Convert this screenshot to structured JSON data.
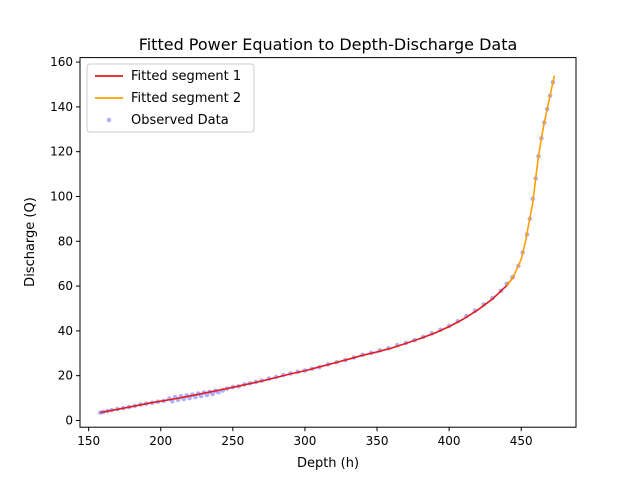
{
  "chart_data": {
    "type": "scatter",
    "title": "Fitted Power Equation to Depth-Discharge Data",
    "xlabel": "Depth (h)",
    "ylabel": "Discharge (Q)",
    "xlim": [
      144,
      488
    ],
    "ylim": [
      -3,
      162
    ],
    "xticks": [
      150,
      200,
      250,
      300,
      350,
      400,
      450
    ],
    "yticks": [
      0,
      20,
      40,
      60,
      80,
      100,
      120,
      140,
      160
    ],
    "grid": false,
    "legend_position": "top-left",
    "legend": [
      {
        "label": "Fitted segment 1",
        "kind": "line",
        "color": "#e41a1c"
      },
      {
        "label": "Fitted segment 2",
        "kind": "line",
        "color": "#ff9f00"
      },
      {
        "label": "Observed Data",
        "kind": "marker",
        "color": "#6f6ff5"
      }
    ],
    "series": [
      {
        "name": "Fitted segment 1",
        "kind": "line",
        "color": "#e41a1c",
        "x": [
          158,
          170,
          180,
          190,
          200,
          210,
          220,
          230,
          240,
          250,
          260,
          270,
          280,
          290,
          300,
          310,
          320,
          330,
          340,
          350,
          360,
          370,
          380,
          390,
          400,
          410,
          420,
          430,
          440,
          445
        ],
        "y": [
          3.5,
          5.0,
          6.2,
          7.5,
          8.6,
          9.7,
          10.9,
          12.2,
          13.5,
          14.8,
          16.2,
          17.6,
          19.2,
          20.8,
          22.2,
          23.9,
          25.6,
          27.3,
          29.1,
          30.6,
          32.3,
          34.4,
          36.6,
          39.0,
          41.9,
          45.3,
          49.4,
          54.2,
          60.3,
          64.5
        ]
      },
      {
        "name": "Fitted segment 2",
        "kind": "line",
        "color": "#ff9f00",
        "x": [
          440,
          445,
          450,
          453,
          455,
          458,
          460,
          462,
          464,
          466,
          468,
          470,
          472,
          473
        ],
        "y": [
          60.0,
          64.8,
          72.0,
          80.0,
          87.0,
          97.0,
          108.0,
          118.0,
          126.0,
          133.0,
          139.0,
          145.0,
          151.0,
          154.0
        ]
      },
      {
        "name": "Observed Data",
        "kind": "scatter",
        "color": "#6f6ff5",
        "x": [
          158,
          160,
          163,
          166,
          170,
          174,
          178,
          182,
          186,
          190,
          194,
          198,
          202,
          206,
          208,
          210,
          212,
          214,
          216,
          218,
          220,
          222,
          224,
          226,
          228,
          230,
          232,
          234,
          236,
          238,
          240,
          243,
          246,
          250,
          254,
          258,
          262,
          266,
          270,
          275,
          280,
          285,
          290,
          295,
          300,
          305,
          310,
          316,
          322,
          328,
          334,
          340,
          346,
          352,
          358,
          364,
          370,
          376,
          382,
          388,
          394,
          400,
          406,
          412,
          418,
          424,
          430,
          436,
          440,
          444,
          448,
          451,
          454,
          456,
          458,
          460,
          462,
          464,
          466,
          468,
          470,
          472
        ],
        "y": [
          3.5,
          3.8,
          4.2,
          4.6,
          5.1,
          5.5,
          6.0,
          6.5,
          7.1,
          7.5,
          7.9,
          8.4,
          8.7,
          9.8,
          8.6,
          10.4,
          9.2,
          10.8,
          9.6,
          11.2,
          10.0,
          11.6,
          10.5,
          12.0,
          10.9,
          12.5,
          11.4,
          12.8,
          11.8,
          13.3,
          12.6,
          13.4,
          14.2,
          14.9,
          15.2,
          16.1,
          16.6,
          17.2,
          17.8,
          18.7,
          19.4,
          20.3,
          21.0,
          21.7,
          22.3,
          23.1,
          23.8,
          25.0,
          26.0,
          27.0,
          28.1,
          29.3,
          30.2,
          31.3,
          32.2,
          33.6,
          34.6,
          35.8,
          37.3,
          38.9,
          40.5,
          42.2,
          44.3,
          46.6,
          49.0,
          51.8,
          54.6,
          57.9,
          61.0,
          64.0,
          69.0,
          75.0,
          83.0,
          90.0,
          99.0,
          108.0,
          118.0,
          126.0,
          133.0,
          139.0,
          145.0,
          151.0
        ]
      }
    ]
  }
}
